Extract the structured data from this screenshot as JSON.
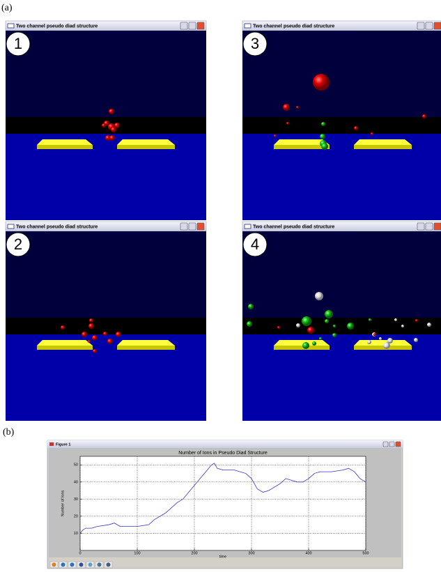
{
  "labels": {
    "a": "(a)",
    "b": "(b)"
  },
  "panels": [
    {
      "window_title": "Two channel pseudo diad structure",
      "number": "1"
    },
    {
      "window_title": "Two channel pseudo diad structure",
      "number": "3"
    },
    {
      "window_title": "Two channel pseudo diad structure",
      "number": "2"
    },
    {
      "window_title": "Two channel pseudo diad structure",
      "number": "4"
    }
  ],
  "chart_data": {
    "type": "line",
    "window_title": "Figure 1",
    "title": "Number of Ions in Pseudo Diad Structure",
    "x_label": "time",
    "y_label": "Number of Ions",
    "x": [
      0,
      5,
      10,
      20,
      30,
      50,
      60,
      70,
      100,
      120,
      130,
      150,
      170,
      180,
      190,
      200,
      210,
      220,
      230,
      235,
      240,
      250,
      270,
      280,
      290,
      300,
      310,
      320,
      330,
      340,
      350,
      360,
      370,
      380,
      390,
      400,
      410,
      420,
      440,
      460,
      470,
      480,
      490,
      500
    ],
    "values": [
      10,
      12,
      13,
      13,
      14,
      15,
      16,
      14,
      14,
      15,
      18,
      22,
      28,
      30,
      34,
      38,
      42,
      46,
      50,
      51,
      48,
      47,
      47,
      46,
      45,
      42,
      36,
      34,
      35,
      37,
      39,
      42,
      41,
      40,
      40,
      42,
      45,
      46,
      46,
      47,
      48,
      46,
      42,
      40
    ],
    "color": "#3333cc",
    "xlim": [
      0,
      500
    ],
    "ylim": [
      0,
      55
    ],
    "xticks": [
      0,
      100,
      200,
      300,
      400,
      500
    ],
    "yticks": [
      10,
      20,
      30,
      40,
      50
    ],
    "grid": true
  }
}
